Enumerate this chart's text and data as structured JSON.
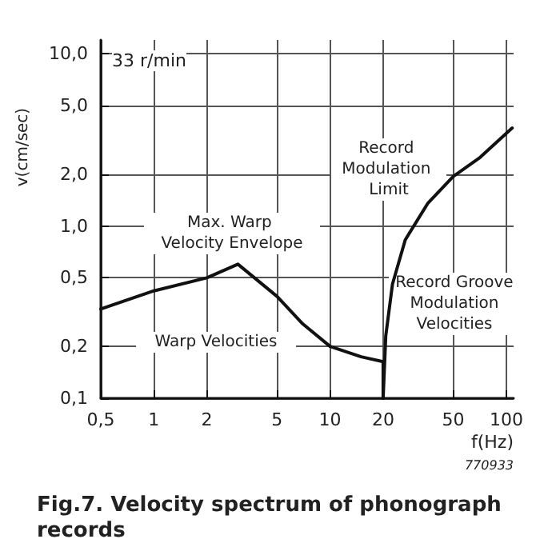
{
  "chart_data": {
    "type": "line",
    "title": "Fig.7. Velocity spectrum of phonograph records",
    "xlabel": "f(Hz)",
    "ylabel": "v(cm/sec)",
    "log": "xy",
    "grid": true,
    "marker": "none",
    "line_style": "solid",
    "xlim": [
      0.5,
      110
    ],
    "ylim": [
      0.1,
      12
    ],
    "xticks": [
      {
        "value": 0.5,
        "label": "0,5"
      },
      1,
      2,
      5,
      10,
      20,
      50,
      100
    ],
    "yticks": [
      {
        "value": 0.1,
        "label": "0,1"
      },
      {
        "value": 0.2,
        "label": "0,2"
      },
      {
        "value": 0.5,
        "label": "0,5"
      },
      {
        "value": 1,
        "label": "1,0"
      },
      {
        "value": 2,
        "label": "2,0"
      },
      {
        "value": 5,
        "label": "5,0"
      },
      {
        "value": 10,
        "label": "10,0"
      }
    ],
    "series": [
      {
        "color": "#111111",
        "x": [
          0.5,
          1,
          2,
          3,
          5,
          7,
          10,
          15,
          20,
          20
        ],
        "values": [
          0.33,
          0.42,
          0.5,
          0.6,
          0.39,
          0.27,
          0.2,
          0.174,
          0.163,
          0.1
        ]
      },
      {
        "color": "#111111",
        "x": [
          20,
          20.7,
          22.6,
          26.7,
          35.8,
          50,
          71,
          108
        ],
        "values": [
          0.1,
          0.23,
          0.46,
          0.83,
          1.35,
          1.94,
          2.5,
          3.7
        ]
      }
    ],
    "annotations": [
      "33 r/min",
      "770933",
      "Max. Warp Velocity Envelope",
      "Record Modulation Limit",
      "Warp Velocities",
      "Record Groove Modulation Velocities"
    ]
  }
}
